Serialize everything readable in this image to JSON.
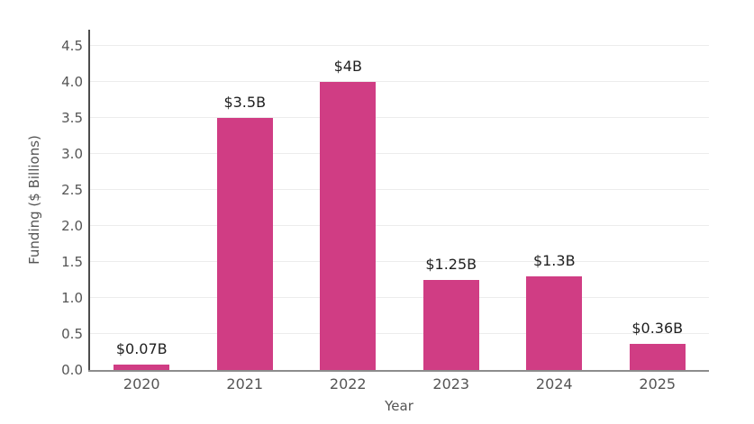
{
  "chart_data": {
    "type": "bar",
    "title": "",
    "xlabel": "Year",
    "ylabel": "Funding ($ Billions)",
    "categories": [
      "2020",
      "2021",
      "2022",
      "2023",
      "2024",
      "2025"
    ],
    "values": [
      0.07,
      3.5,
      4.0,
      1.25,
      1.3,
      0.36
    ],
    "bar_labels": [
      "$0.07B",
      "$3.5B",
      "$4B",
      "$1.25B",
      "$1.3B",
      "$0.36B"
    ],
    "ytick_labels": [
      "0.0",
      "0.5",
      "1.0",
      "1.5",
      "2.0",
      "2.5",
      "3.0",
      "3.5",
      "4.0",
      "4.5"
    ],
    "ytick_values": [
      0.0,
      0.5,
      1.0,
      1.5,
      2.0,
      2.5,
      3.0,
      3.5,
      4.0,
      4.5
    ],
    "ylim": [
      0,
      4.725
    ],
    "grid": true,
    "legend": null,
    "colors": {
      "bar": "#d03d84",
      "grid": "#ececec",
      "axis_spine_left": "#4d4d4d",
      "axis_spine_bottom": "#8c8c8c",
      "tick_label": "#555555",
      "value_label": "#1f1f1f",
      "axis_title": "#555555",
      "background": "#ffffff"
    }
  }
}
